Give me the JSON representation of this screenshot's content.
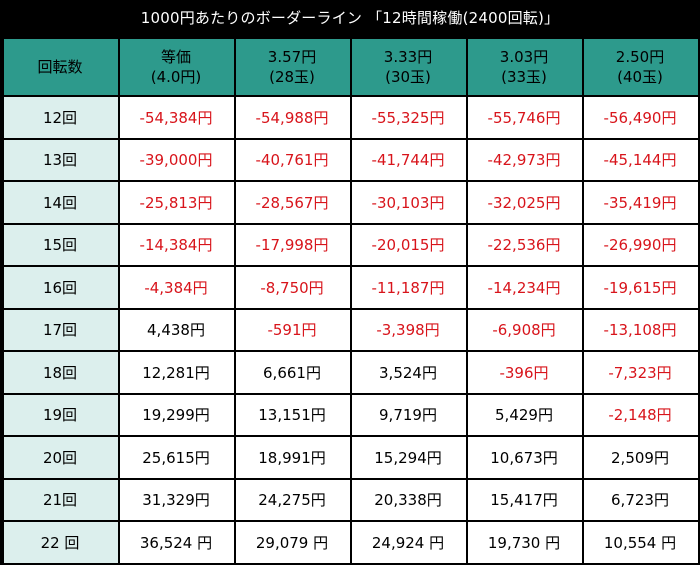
{
  "title": "1000円あたりのボーダーライン 「12時間稼働(2400回転)」",
  "table": {
    "corner_header": "回転数",
    "columns": [
      {
        "line1": "等価",
        "line2": "(4.0円)"
      },
      {
        "line1": "3.57円",
        "line2": "(28玉)"
      },
      {
        "line1": "3.33円",
        "line2": "(30玉)"
      },
      {
        "line1": "3.03円",
        "line2": "(33玉)"
      },
      {
        "line1": "2.50円",
        "line2": "(40玉)"
      }
    ],
    "rows": [
      {
        "label": "12回",
        "cells": [
          "-54,384円",
          "-54,988円",
          "-55,325円",
          "-55,746円",
          "-56,490円"
        ]
      },
      {
        "label": "13回",
        "cells": [
          "-39,000円",
          "-40,761円",
          "-41,744円",
          "-42,973円",
          "-45,144円"
        ]
      },
      {
        "label": "14回",
        "cells": [
          "-25,813円",
          "-28,567円",
          "-30,103円",
          "-32,025円",
          "-35,419円"
        ]
      },
      {
        "label": "15回",
        "cells": [
          "-14,384円",
          "-17,998円",
          "-20,015円",
          "-22,536円",
          "-26,990円"
        ]
      },
      {
        "label": "16回",
        "cells": [
          "-4,384円",
          "-8,750円",
          "-11,187円",
          "-14,234円",
          "-19,615円"
        ]
      },
      {
        "label": "17回",
        "cells": [
          "4,438円",
          "-591円",
          "-3,398円",
          "-6,908円",
          "-13,108円"
        ]
      },
      {
        "label": "18回",
        "cells": [
          "12,281円",
          "6,661円",
          "3,524円",
          "-396円",
          "-7,323円"
        ]
      },
      {
        "label": "19回",
        "cells": [
          "19,299円",
          "13,151円",
          "9,719円",
          "5,429円",
          "-2,148円"
        ]
      },
      {
        "label": "20回",
        "cells": [
          "25,615円",
          "18,991円",
          "15,294円",
          "10,673円",
          "2,509円"
        ]
      },
      {
        "label": "21回",
        "cells": [
          "31,329円",
          "24,275円",
          "20,338円",
          "15,417円",
          "6,723円"
        ]
      },
      {
        "label": "22 回",
        "cells": [
          "36,524 円",
          "29,079 円",
          "24,924 円",
          "19,730 円",
          "10,554 円"
        ]
      }
    ]
  },
  "colors": {
    "header_bg": "#2d9a8c",
    "row_label_bg": "#dcefed",
    "negative_text": "#d8141b",
    "positive_text": "#000000",
    "frame": "#000000"
  }
}
